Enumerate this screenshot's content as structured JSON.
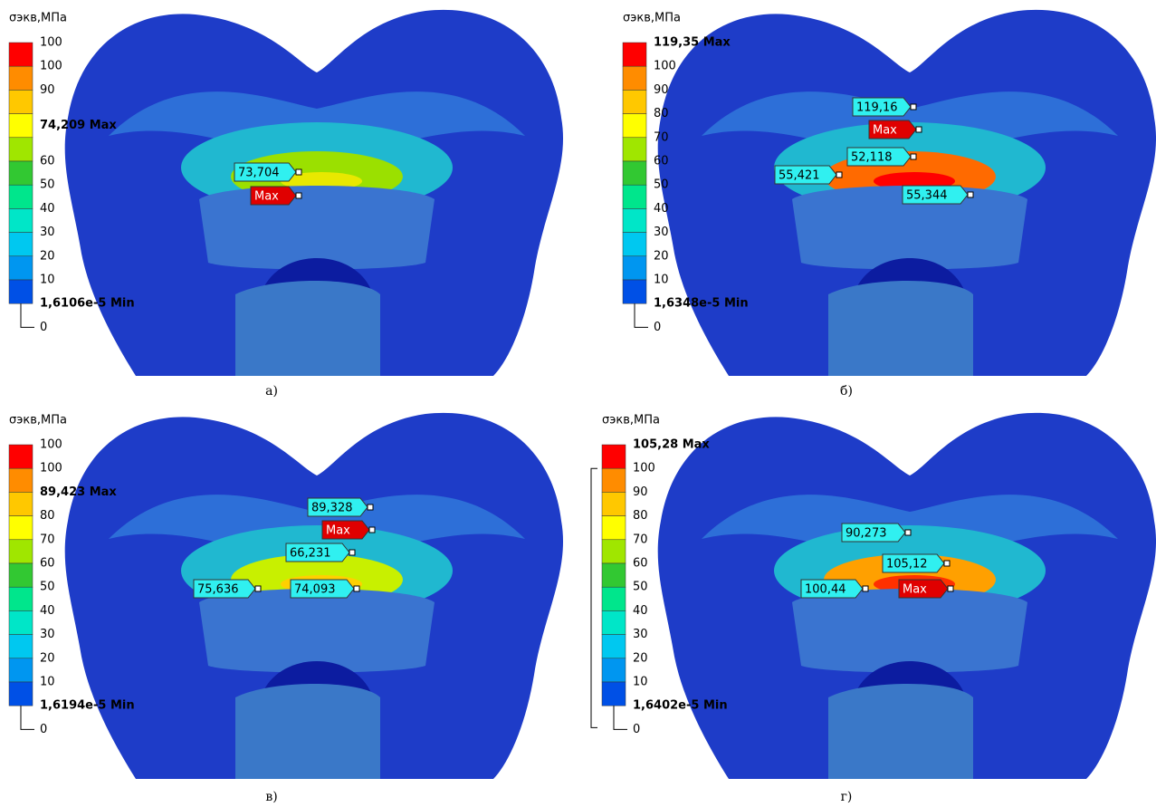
{
  "panels": [
    {
      "caption": "а)",
      "legend_title": "σэкв,МПа",
      "legend_labels": [
        "100",
        "100",
        "90",
        "74,209 Max",
        "60",
        "50",
        "40",
        "30",
        "20",
        "10",
        "1,6106e-5 Min",
        "0"
      ],
      "probes": [
        {
          "label": "73,704"
        },
        {
          "label": "Max"
        }
      ]
    },
    {
      "caption": "б)",
      "legend_title": "σэкв,МПа",
      "legend_labels": [
        "119,35 Max",
        "100",
        "90",
        "80",
        "70",
        "60",
        "50",
        "40",
        "30",
        "20",
        "10",
        "1,6348e-5 Min",
        "0"
      ],
      "probes": [
        {
          "label": "119,16"
        },
        {
          "label": "Max"
        },
        {
          "label": "52,118"
        },
        {
          "label": "55,421"
        },
        {
          "label": "55,344"
        }
      ]
    },
    {
      "caption": "в)",
      "legend_title": "σэкв,МПа",
      "legend_labels": [
        "100",
        "100",
        "89,423 Max",
        "80",
        "70",
        "60",
        "50",
        "40",
        "30",
        "20",
        "10",
        "1,6194e-5 Min",
        "0"
      ],
      "probes": [
        {
          "label": "89,328"
        },
        {
          "label": "Max"
        },
        {
          "label": "66,231"
        },
        {
          "label": "75,636"
        },
        {
          "label": "74,093"
        }
      ]
    },
    {
      "caption": "г)",
      "legend_title": "σэкв,МПа",
      "legend_labels": [
        "105,28 Max",
        "100",
        "90",
        "80",
        "70",
        "60",
        "50",
        "40",
        "30",
        "20",
        "10",
        "1,6402e-5 Min",
        "0"
      ],
      "probes": [
        {
          "label": "90,273"
        },
        {
          "label": "105,12"
        },
        {
          "label": "100,44"
        },
        {
          "label": "Max"
        }
      ]
    }
  ]
}
